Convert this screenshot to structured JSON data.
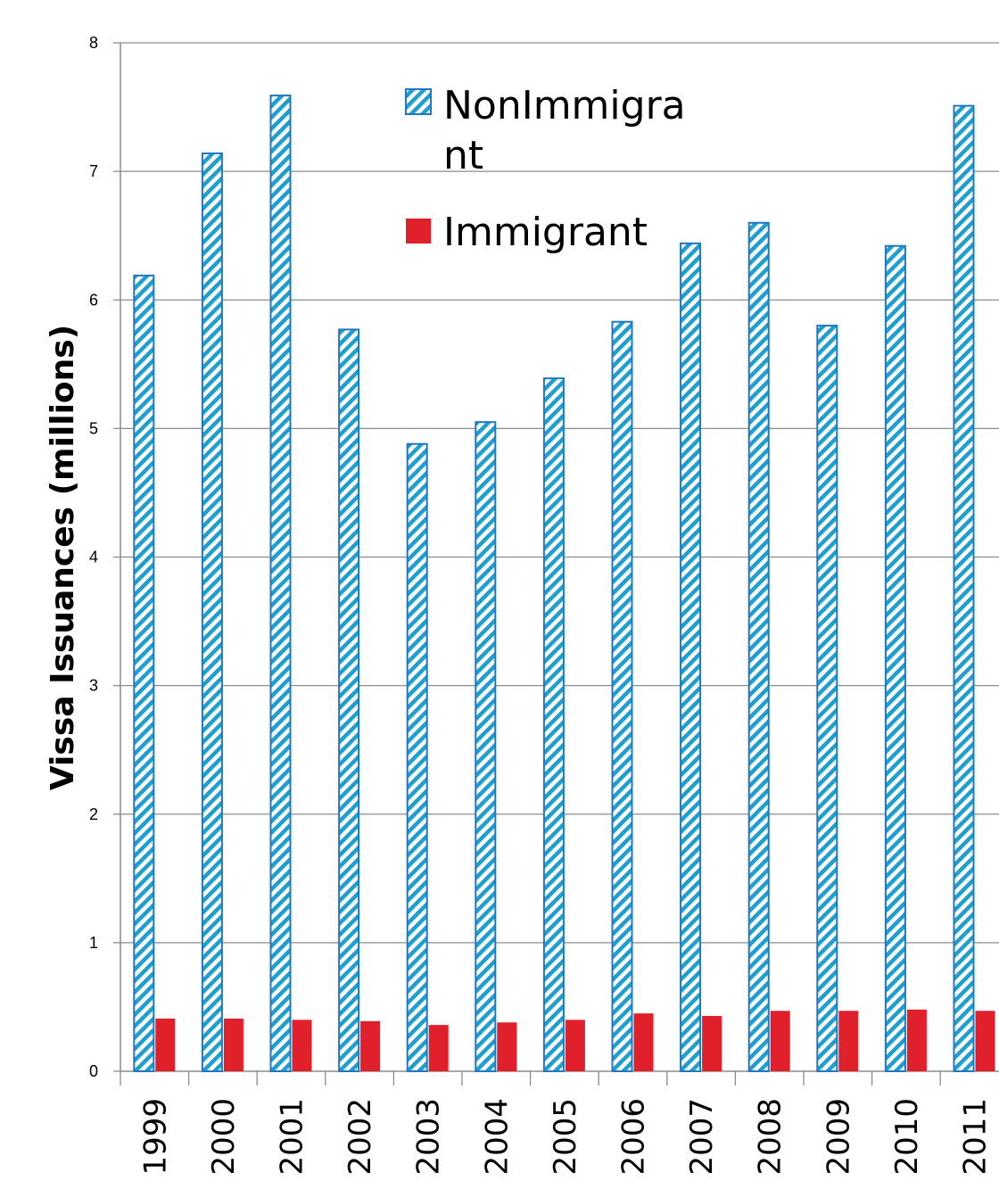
{
  "chart_data": {
    "type": "bar",
    "title": "",
    "xlabel": "",
    "ylabel": "Vissa Issuances (millions)",
    "ylim": [
      0,
      8
    ],
    "yticks": [
      0,
      1,
      2,
      3,
      4,
      5,
      6,
      7,
      8
    ],
    "grid": true,
    "legend_position": "top-center",
    "categories": [
      "1999",
      "2000",
      "2001",
      "2002",
      "2003",
      "2004",
      "2005",
      "2006",
      "2007",
      "2008",
      "2009",
      "2010",
      "2011"
    ],
    "series": [
      {
        "name": "NonImmigrant",
        "legend_label_lines": [
          "NonImmigra",
          "nt"
        ],
        "color": "#1f78c1",
        "fill": "hatched",
        "values": [
          6.19,
          7.14,
          7.59,
          5.77,
          4.88,
          5.05,
          5.39,
          5.83,
          6.44,
          6.6,
          5.8,
          6.42,
          7.51
        ]
      },
      {
        "name": "Immigrant",
        "legend_label_lines": [
          "Immigrant"
        ],
        "color": "#e0202a",
        "fill": "solid",
        "values": [
          0.41,
          0.41,
          0.4,
          0.39,
          0.36,
          0.38,
          0.4,
          0.45,
          0.43,
          0.47,
          0.47,
          0.48,
          0.47
        ]
      }
    ]
  }
}
